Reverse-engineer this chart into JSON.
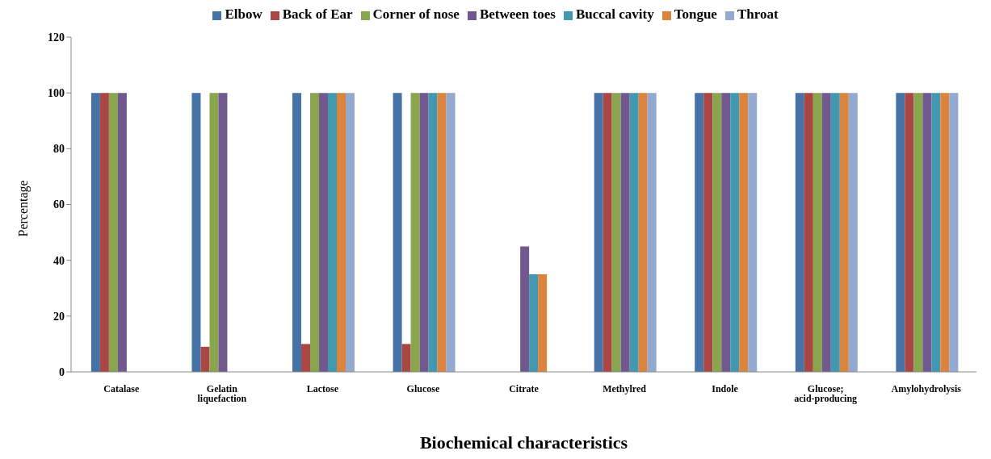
{
  "chart_data": {
    "type": "bar",
    "xlabel": "Biochemical characteristics",
    "ylabel": "Percentage",
    "categories": [
      "Catalase",
      "Gelatin liquefaction",
      "Lactose",
      "Glucose",
      "Citrate",
      "Methylred",
      "Indole",
      "Glucose; acid-producing",
      "Amylohydrolysis"
    ],
    "series": [
      {
        "name": "Elbow",
        "color": "#4572a7",
        "values": [
          100,
          100,
          100,
          100,
          0,
          100,
          100,
          100,
          100
        ]
      },
      {
        "name": "Back of Ear",
        "color": "#aa4643",
        "values": [
          100,
          9,
          10,
          10,
          0,
          100,
          100,
          100,
          100
        ]
      },
      {
        "name": "Corner of nose",
        "color": "#89a54e",
        "values": [
          100,
          100,
          100,
          100,
          0,
          100,
          100,
          100,
          100
        ]
      },
      {
        "name": "Between toes",
        "color": "#71588f",
        "values": [
          100,
          100,
          100,
          100,
          45,
          100,
          100,
          100,
          100
        ]
      },
      {
        "name": "Buccal cavity",
        "color": "#4198af",
        "values": [
          0,
          0,
          100,
          100,
          35,
          100,
          100,
          100,
          100
        ]
      },
      {
        "name": "Tongue",
        "color": "#db843d",
        "values": [
          0,
          0,
          100,
          100,
          35,
          100,
          100,
          100,
          100
        ]
      },
      {
        "name": "Throat",
        "color": "#93a9cf",
        "values": [
          0,
          0,
          100,
          100,
          0,
          100,
          100,
          100,
          100
        ]
      }
    ],
    "ylim": [
      0,
      120
    ],
    "yticks": [
      0,
      20,
      40,
      60,
      80,
      100,
      120
    ],
    "grid": false,
    "legend": "top"
  }
}
